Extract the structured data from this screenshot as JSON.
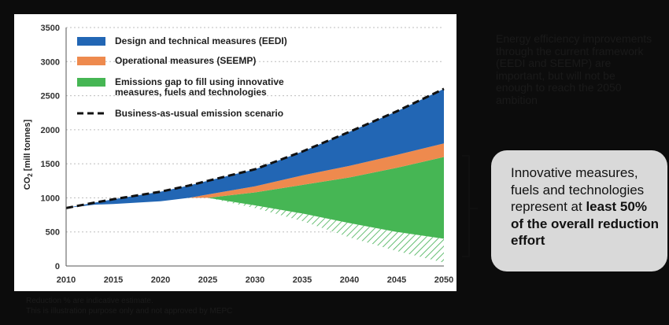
{
  "chart_data": {
    "type": "area",
    "ylabel_main": "CO",
    "ylabel_sub": "2",
    "ylabel_unit": " [mill tonnes]",
    "ylim": [
      0,
      3500
    ],
    "yticks": [
      0,
      500,
      1000,
      1500,
      2000,
      2500,
      3000,
      3500
    ],
    "xlim": [
      2010,
      2050
    ],
    "xticks": [
      2010,
      2015,
      2020,
      2025,
      2030,
      2035,
      2040,
      2045,
      2050
    ],
    "grid": "horizontal dotted",
    "legend_position": "top-left",
    "x": [
      2010,
      2013,
      2015,
      2020,
      2023,
      2025,
      2030,
      2035,
      2040,
      2045,
      2050
    ],
    "bau": [
      850,
      930,
      980,
      1090,
      1180,
      1250,
      1420,
      1680,
      1970,
      2270,
      2600
    ],
    "eedi_bottom": [
      850,
      900,
      910,
      950,
      1000,
      1050,
      1170,
      1330,
      1470,
      1630,
      1800
    ],
    "seemp_bottom": [
      850,
      900,
      910,
      950,
      1000,
      1000,
      1080,
      1190,
      1300,
      1440,
      1600
    ],
    "gap_bottom": [
      850,
      900,
      910,
      950,
      1000,
      1000,
      890,
      770,
      630,
      500,
      400
    ],
    "hatch_bottom": [
      850,
      900,
      910,
      950,
      1000,
      1000,
      850,
      660,
      420,
      220,
      50
    ],
    "series": [
      {
        "name": "Design and technical measures (EEDI)",
        "color": "#2266b4"
      },
      {
        "name": "Operational measures (SEEMP)",
        "color": "#ee8a4e"
      },
      {
        "name": "Emissions gap to fill using innovative measures, fuels and technologies",
        "color": "#46b654"
      },
      {
        "name": "Business-as-usual emission scenario",
        "color": "#111111"
      }
    ],
    "legend_labels": [
      [
        "Design and technical measures (EEDI)"
      ],
      [
        "Operational measures (SEEMP)"
      ],
      [
        "Emissions gap to fill using innovative",
        "measures, fuels and technologies"
      ],
      [
        "Business-as-usual emission scenario"
      ]
    ]
  },
  "side_text": "Energy efficiency improvements through the current framework (EEDI and SEEMP) are important, but will not be enough to reach the 2050 ambition",
  "callout": {
    "text_plain": "Innovative measures, fuels and technologies represent at ",
    "text_bold": "least 50% of the overall reduction effort"
  },
  "footnote": {
    "line1": "Reduction % are indicative estimate.",
    "line2": "This is illustration purpose only and not approved by MEPC"
  }
}
